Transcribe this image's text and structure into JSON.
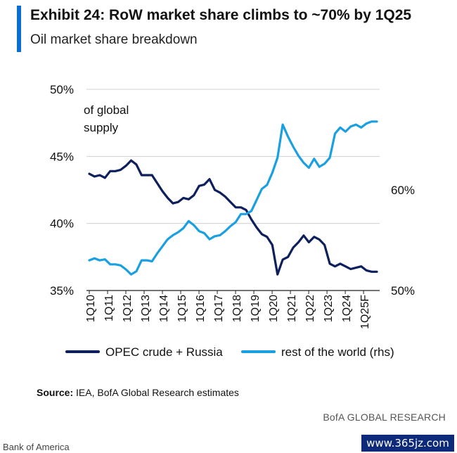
{
  "header": {
    "title": "Exhibit 24: RoW market share climbs to ~70% by 1Q25",
    "subtitle": "Oil market share breakdown"
  },
  "footer": {
    "source_label": "Source:",
    "source_text": "IEA, BofA Global Research estimates",
    "brand": "BofA GLOBAL RESEARCH",
    "company": "Bank of America",
    "watermark": "www.365jz.com"
  },
  "chart_data": {
    "type": "line",
    "annotation": "of global\nsupply",
    "x_ticks": [
      "1Q10",
      "1Q11",
      "1Q12",
      "1Q13",
      "1Q14",
      "1Q15",
      "1Q16",
      "1Q17",
      "1Q18",
      "1Q19",
      "1Q20",
      "1Q21",
      "1Q22",
      "1Q23",
      "1Q24",
      "1Q25F"
    ],
    "y_left": {
      "min": 35,
      "max": 50,
      "ticks": [
        35,
        40,
        45,
        50
      ],
      "format": "%"
    },
    "y_right": {
      "min": 50,
      "max": 70,
      "tick_labels": [
        {
          "value": 50,
          "label": "50%"
        },
        {
          "value": 60,
          "label": "60%"
        }
      ]
    },
    "grid": true,
    "legend_position": "bottom",
    "series": [
      {
        "name": "OPEC crude + Russia",
        "axis": "left",
        "color": "#0d1f5c",
        "values": [
          43.7,
          43.5,
          43.6,
          43.4,
          43.9,
          43.9,
          44.0,
          44.3,
          44.7,
          44.4,
          43.6,
          43.6,
          43.6,
          43.0,
          42.4,
          41.9,
          41.5,
          41.6,
          41.9,
          41.8,
          42.1,
          42.8,
          42.9,
          43.3,
          42.5,
          42.3,
          42.0,
          41.6,
          41.2,
          41.2,
          41.0,
          40.3,
          39.7,
          39.2,
          39.0,
          38.4,
          36.2,
          37.3,
          37.5,
          38.2,
          38.6,
          39.1,
          38.6,
          39.0,
          38.8,
          38.4,
          37.0,
          36.8,
          37.0,
          36.8,
          36.6,
          36.7,
          36.8,
          36.5,
          36.4,
          36.4
        ]
      },
      {
        "name": "rest of the world (rhs)",
        "axis": "right",
        "color": "#1aa0e0",
        "values": [
          53.0,
          53.2,
          53.0,
          53.1,
          52.6,
          52.6,
          52.5,
          52.1,
          51.6,
          51.9,
          53.0,
          53.0,
          52.9,
          53.7,
          54.4,
          55.1,
          55.5,
          55.8,
          56.2,
          56.9,
          56.5,
          55.9,
          55.7,
          55.1,
          55.4,
          55.5,
          55.9,
          56.4,
          56.8,
          57.6,
          57.6,
          57.9,
          59.0,
          60.1,
          60.5,
          61.7,
          63.2,
          66.5,
          65.3,
          64.3,
          63.4,
          62.7,
          62.2,
          63.1,
          62.3,
          62.6,
          63.2,
          65.6,
          66.2,
          65.8,
          66.3,
          66.5,
          66.2,
          66.6,
          66.8,
          66.8
        ]
      }
    ]
  }
}
